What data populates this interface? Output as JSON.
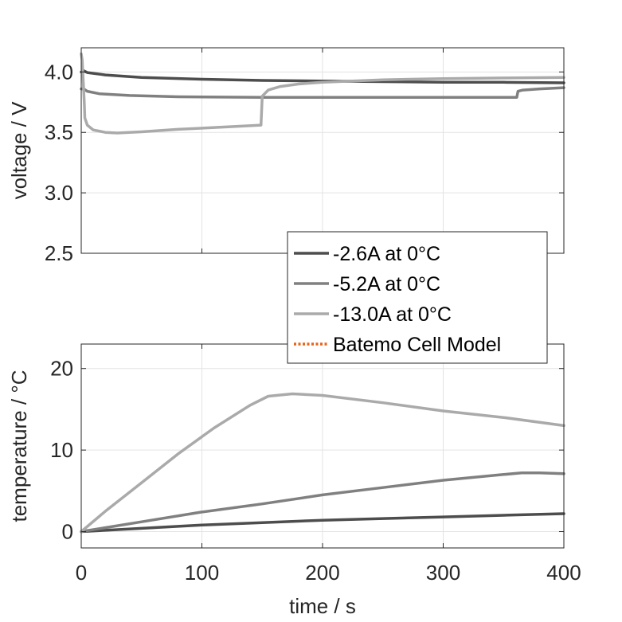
{
  "chart_data": [
    {
      "type": "line",
      "ylabel": "voltage / V",
      "xlabel": "",
      "xlim": [
        0,
        400
      ],
      "ylim": [
        2.5,
        4.2
      ],
      "xticks": [
        0,
        100,
        200,
        300,
        400
      ],
      "yticks": [
        "2.5",
        "3.0",
        "3.5",
        "4.0"
      ],
      "ytick_values": [
        2.5,
        3.0,
        3.5,
        4.0
      ],
      "grid": true,
      "series": [
        {
          "name": "-2.6A at 0°C",
          "color": "#4d4d4d",
          "points": [
            [
              0,
              4.0
            ],
            [
              2,
              4.01
            ],
            [
              5,
              3.995
            ],
            [
              20,
              3.975
            ],
            [
              50,
              3.955
            ],
            [
              100,
              3.94
            ],
            [
              150,
              3.93
            ],
            [
              200,
              3.925
            ],
            [
              250,
              3.92
            ],
            [
              300,
              3.915
            ],
            [
              350,
              3.915
            ],
            [
              400,
              3.91
            ]
          ]
        },
        {
          "name": "-5.2A at 0°C",
          "color": "#808080",
          "points": [
            [
              0,
              3.86
            ],
            [
              2,
              3.86
            ],
            [
              5,
              3.84
            ],
            [
              15,
              3.82
            ],
            [
              40,
              3.805
            ],
            [
              80,
              3.795
            ],
            [
              150,
              3.79
            ],
            [
              250,
              3.79
            ],
            [
              361,
              3.79
            ],
            [
              362,
              3.84
            ],
            [
              366,
              3.85
            ],
            [
              380,
              3.86
            ],
            [
              400,
              3.87
            ]
          ]
        },
        {
          "name": "-13.0A at 0°C",
          "color": "#aaaaaa",
          "points": [
            [
              0,
              4.15
            ],
            [
              0.8,
              4.1
            ],
            [
              1.5,
              3.95
            ],
            [
              2.5,
              3.75
            ],
            [
              3,
              3.62
            ],
            [
              5,
              3.56
            ],
            [
              10,
              3.52
            ],
            [
              20,
              3.5
            ],
            [
              30,
              3.495
            ],
            [
              50,
              3.505
            ],
            [
              80,
              3.525
            ],
            [
              120,
              3.545
            ],
            [
              149,
              3.56
            ],
            [
              150,
              3.8
            ],
            [
              155,
              3.85
            ],
            [
              165,
              3.88
            ],
            [
              180,
              3.9
            ],
            [
              200,
              3.915
            ],
            [
              250,
              3.935
            ],
            [
              300,
              3.945
            ],
            [
              350,
              3.95
            ],
            [
              400,
              3.955
            ]
          ]
        }
      ]
    },
    {
      "type": "line",
      "ylabel": "temperature / °C",
      "xlabel": "time / s",
      "xlim": [
        0,
        400
      ],
      "ylim": [
        -2,
        23
      ],
      "xticks": [
        0,
        100,
        200,
        300,
        400
      ],
      "yticks": [
        "0",
        "10",
        "20"
      ],
      "ytick_values": [
        0,
        10,
        20
      ],
      "grid": true,
      "series": [
        {
          "name": "-2.6A at 0°C",
          "color": "#4d4d4d",
          "points": [
            [
              0,
              0
            ],
            [
              50,
              0.4
            ],
            [
              100,
              0.8
            ],
            [
              150,
              1.1
            ],
            [
              200,
              1.4
            ],
            [
              250,
              1.6
            ],
            [
              300,
              1.8
            ],
            [
              350,
              2.0
            ],
            [
              400,
              2.2
            ]
          ]
        },
        {
          "name": "-5.2A at 0°C",
          "color": "#808080",
          "points": [
            [
              0,
              0
            ],
            [
              50,
              1.2
            ],
            [
              100,
              2.4
            ],
            [
              150,
              3.4
            ],
            [
              200,
              4.5
            ],
            [
              250,
              5.4
            ],
            [
              300,
              6.3
            ],
            [
              350,
              7.0
            ],
            [
              365,
              7.2
            ],
            [
              380,
              7.2
            ],
            [
              400,
              7.1
            ]
          ]
        },
        {
          "name": "-13.0A at 0°C",
          "color": "#aaaaaa",
          "points": [
            [
              0,
              0
            ],
            [
              20,
              2.5
            ],
            [
              50,
              6.0
            ],
            [
              80,
              9.5
            ],
            [
              110,
              12.7
            ],
            [
              140,
              15.5
            ],
            [
              155,
              16.6
            ],
            [
              175,
              16.9
            ],
            [
              200,
              16.7
            ],
            [
              250,
              15.8
            ],
            [
              300,
              14.8
            ],
            [
              350,
              14.0
            ],
            [
              400,
              13.0
            ]
          ]
        }
      ]
    }
  ],
  "legend": {
    "placement": "between panels, right",
    "entries": [
      {
        "label": "-2.6A at 0°C",
        "color": "#4d4d4d",
        "style": "solid"
      },
      {
        "label": "-5.2A at 0°C",
        "color": "#808080",
        "style": "solid"
      },
      {
        "label": "-13.0A at 0°C",
        "color": "#aaaaaa",
        "style": "solid"
      },
      {
        "label": "Batemo Cell Model",
        "color": "#e8641b",
        "style": "dotted"
      }
    ]
  }
}
